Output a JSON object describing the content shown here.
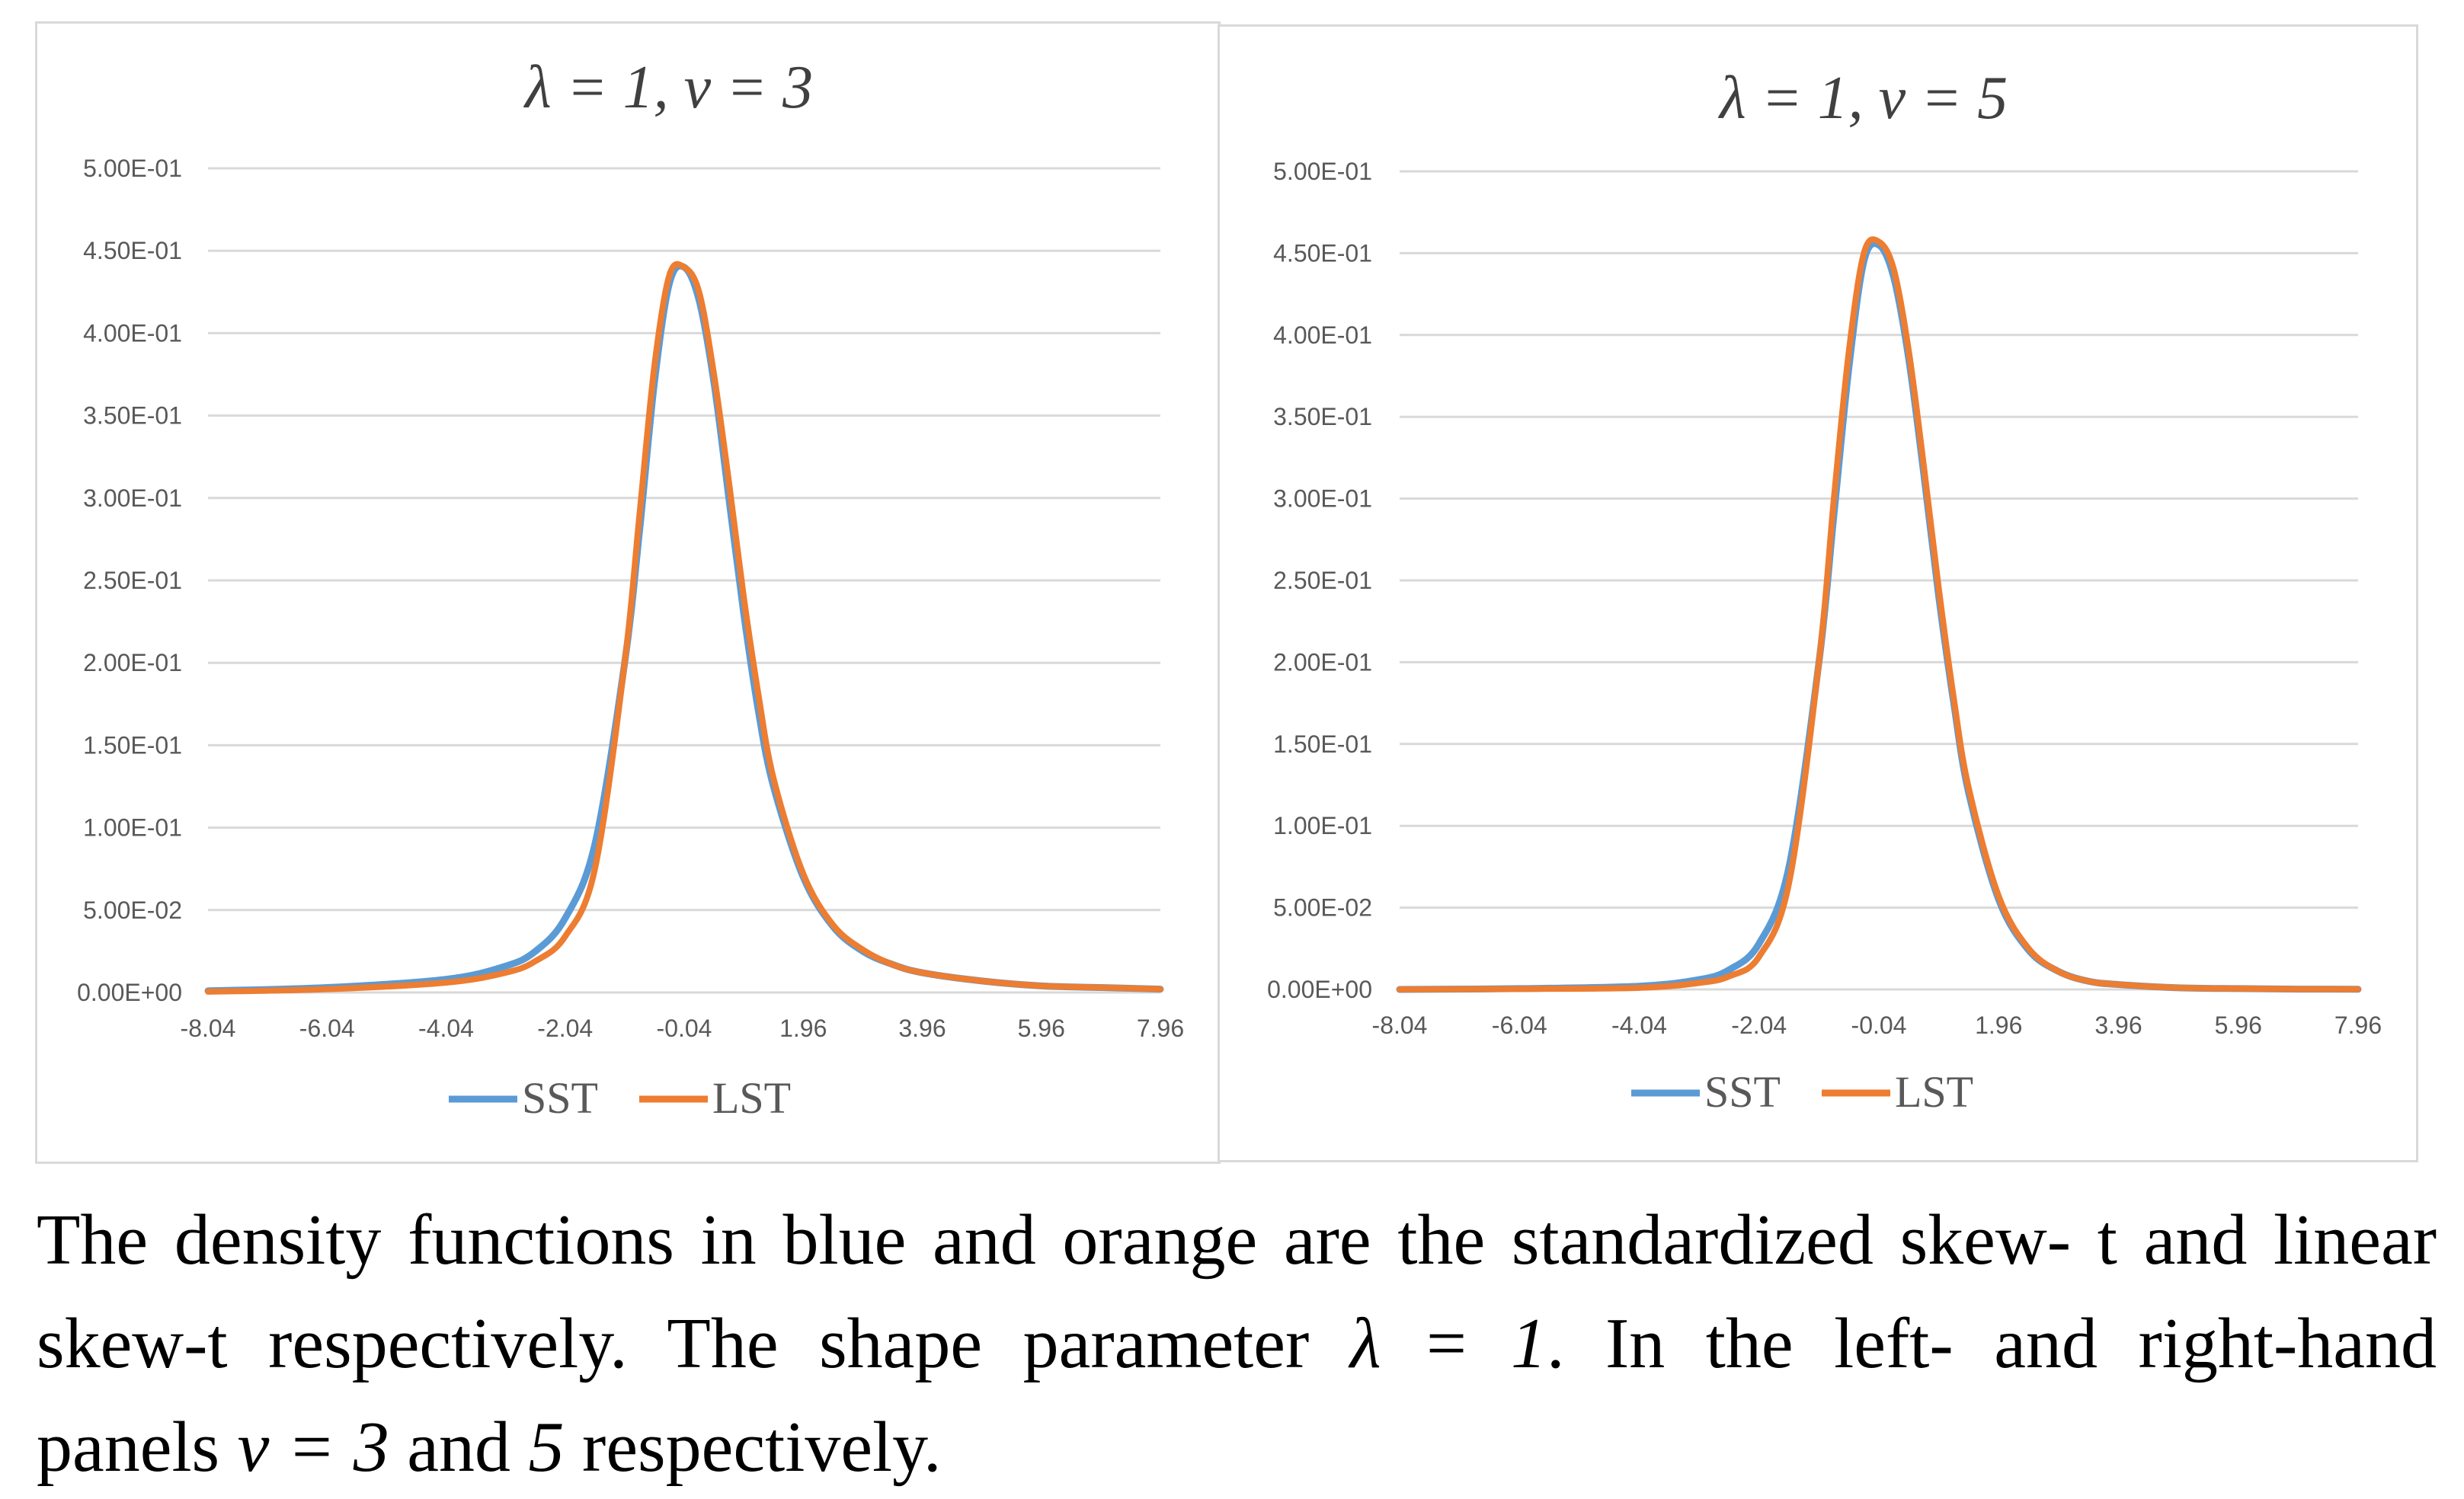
{
  "chart_data": [
    {
      "type": "line",
      "title": "λ = 1, ν = 3",
      "lambda": 1,
      "nu": 3,
      "x_tick_labels": [
        "-8.04",
        "-6.04",
        "-4.04",
        "-2.04",
        "-0.04",
        "1.96",
        "3.96",
        "5.96",
        "7.96"
      ],
      "y_tick_labels": [
        "0.00E+00",
        "5.00E-02",
        "1.00E-01",
        "1.50E-01",
        "2.00E-01",
        "2.50E-01",
        "3.00E-01",
        "3.50E-01",
        "4.00E-01",
        "4.50E-01",
        "5.00E-01"
      ],
      "xlim": [
        -8.04,
        7.96
      ],
      "ylim": [
        0,
        0.5
      ],
      "grid": "horizontal",
      "legend": "bottom",
      "series": [
        {
          "name": "SST",
          "color": "#5b9bd5",
          "x": [
            -8.04,
            -6.04,
            -4.04,
            -3.04,
            -2.54,
            -2.04,
            -1.54,
            -1.04,
            -0.79,
            -0.54,
            -0.29,
            -0.04,
            0.21,
            0.46,
            0.71,
            0.96,
            1.21,
            1.46,
            1.96,
            2.46,
            2.96,
            3.46,
            3.96,
            4.96,
            5.96,
            6.96,
            7.96
          ],
          "y": [
            0.001,
            0.003,
            0.008,
            0.016,
            0.025,
            0.045,
            0.09,
            0.2,
            0.28,
            0.37,
            0.43,
            0.44,
            0.42,
            0.37,
            0.3,
            0.23,
            0.17,
            0.125,
            0.07,
            0.04,
            0.025,
            0.017,
            0.012,
            0.007,
            0.004,
            0.003,
            0.002
          ]
        },
        {
          "name": "LST",
          "color": "#ed7d31",
          "x": [
            -8.04,
            -6.04,
            -4.04,
            -3.04,
            -2.54,
            -2.04,
            -1.54,
            -1.04,
            -0.79,
            -0.54,
            -0.29,
            -0.04,
            0.21,
            0.46,
            0.71,
            0.96,
            1.21,
            1.46,
            1.96,
            2.46,
            2.96,
            3.46,
            3.96,
            4.96,
            5.96,
            6.96,
            7.96
          ],
          "y": [
            0.0005,
            0.002,
            0.006,
            0.012,
            0.019,
            0.034,
            0.075,
            0.2,
            0.29,
            0.38,
            0.435,
            0.44,
            0.425,
            0.375,
            0.31,
            0.24,
            0.18,
            0.13,
            0.072,
            0.041,
            0.026,
            0.017,
            0.012,
            0.007,
            0.004,
            0.003,
            0.002
          ]
        }
      ]
    },
    {
      "type": "line",
      "title": "λ = 1, ν = 5",
      "lambda": 1,
      "nu": 5,
      "x_tick_labels": [
        "-8.04",
        "-6.04",
        "-4.04",
        "-2.04",
        "-0.04",
        "1.96",
        "3.96",
        "5.96",
        "7.96"
      ],
      "y_tick_labels": [
        "0.00E+00",
        "5.00E-02",
        "1.00E-01",
        "1.50E-01",
        "2.00E-01",
        "2.50E-01",
        "3.00E-01",
        "3.50E-01",
        "4.00E-01",
        "4.50E-01",
        "5.00E-01"
      ],
      "xlim": [
        -8.04,
        7.96
      ],
      "ylim": [
        0,
        0.5
      ],
      "grid": "horizontal",
      "legend": "bottom",
      "series": [
        {
          "name": "SST",
          "color": "#5b9bd5",
          "x": [
            -8.04,
            -6.04,
            -4.04,
            -3.04,
            -2.54,
            -2.04,
            -1.54,
            -1.04,
            -0.79,
            -0.54,
            -0.29,
            -0.04,
            0.21,
            0.46,
            0.71,
            0.96,
            1.21,
            1.46,
            1.96,
            2.46,
            2.96,
            3.46,
            3.96,
            4.96,
            5.96,
            6.96,
            7.96
          ],
          "y": [
            0.0,
            0.0005,
            0.002,
            0.006,
            0.012,
            0.028,
            0.075,
            0.2,
            0.29,
            0.38,
            0.445,
            0.455,
            0.435,
            0.385,
            0.315,
            0.24,
            0.175,
            0.12,
            0.055,
            0.024,
            0.011,
            0.005,
            0.003,
            0.001,
            0.0005,
            0.0002,
            0.0001
          ]
        },
        {
          "name": "LST",
          "color": "#ed7d31",
          "x": [
            -8.04,
            -6.04,
            -4.04,
            -3.04,
            -2.54,
            -2.04,
            -1.54,
            -1.04,
            -0.79,
            -0.54,
            -0.29,
            -0.04,
            0.21,
            0.46,
            0.71,
            0.96,
            1.21,
            1.46,
            1.96,
            2.46,
            2.96,
            3.46,
            3.96,
            4.96,
            5.96,
            6.96,
            7.96
          ],
          "y": [
            0.0,
            0.0003,
            0.001,
            0.004,
            0.008,
            0.02,
            0.065,
            0.2,
            0.3,
            0.39,
            0.45,
            0.457,
            0.44,
            0.39,
            0.32,
            0.245,
            0.178,
            0.123,
            0.057,
            0.025,
            0.011,
            0.005,
            0.003,
            0.001,
            0.0005,
            0.0002,
            0.0001
          ]
        }
      ]
    }
  ],
  "caption": {
    "line1": "The density functions in blue and orange are the standardized skew- t and linear",
    "line2_a": "skew-t respectively. The shape parameter ",
    "line2_sym": "λ = 1",
    "line2_b": ". In the left- and right-hand",
    "line3_a": "panels ",
    "line3_sym1": "ν = 3",
    "line3_b": " and ",
    "line3_sym2": "5",
    "line3_c": " respectively."
  }
}
